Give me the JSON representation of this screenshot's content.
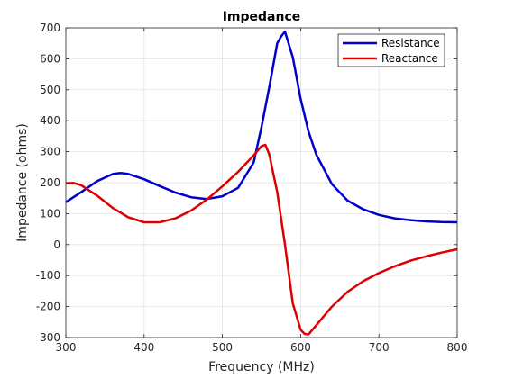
{
  "chart_data": {
    "type": "line",
    "title": "Impedance",
    "xlabel": "Frequency (MHz)",
    "ylabel": "Impedance (ohms)",
    "xlim": [
      300,
      800
    ],
    "ylim": [
      -300,
      700
    ],
    "xticks": [
      "300",
      "400",
      "500",
      "600",
      "700",
      "800"
    ],
    "yticks": [
      "700",
      "600",
      "500",
      "400",
      "300",
      "200",
      "100",
      "0",
      "-100",
      "-200",
      "-300"
    ],
    "grid": true,
    "legend_position": "top-right",
    "series": [
      {
        "name": "Resistance",
        "color": "#0000cc",
        "x": [
          300,
          320,
          340,
          360,
          370,
          380,
          400,
          420,
          440,
          460,
          480,
          500,
          520,
          540,
          550,
          560,
          570,
          575,
          580,
          590,
          600,
          610,
          620,
          640,
          660,
          680,
          700,
          720,
          740,
          760,
          780,
          800
        ],
        "y": [
          137,
          170,
          205,
          228,
          231,
          228,
          211,
          189,
          168,
          153,
          147,
          156,
          183,
          265,
          380,
          510,
          650,
          672,
          688,
          605,
          470,
          365,
          290,
          195,
          142,
          114,
          96,
          85,
          79,
          75,
          73,
          72
        ]
      },
      {
        "name": "Reactance",
        "color": "#dd0000",
        "x": [
          300,
          310,
          320,
          340,
          360,
          380,
          400,
          420,
          440,
          460,
          480,
          500,
          520,
          540,
          550,
          555,
          560,
          565,
          570,
          580,
          590,
          600,
          605,
          610,
          620,
          640,
          660,
          680,
          700,
          720,
          740,
          760,
          780,
          800
        ],
        "y": [
          198,
          199,
          191,
          158,
          118,
          88,
          72,
          72,
          85,
          110,
          145,
          188,
          235,
          288,
          318,
          322,
          290,
          230,
          170,
          0,
          -190,
          -275,
          -288,
          -290,
          -260,
          -200,
          -152,
          -118,
          -92,
          -70,
          -52,
          -38,
          -26,
          -15
        ]
      }
    ]
  }
}
